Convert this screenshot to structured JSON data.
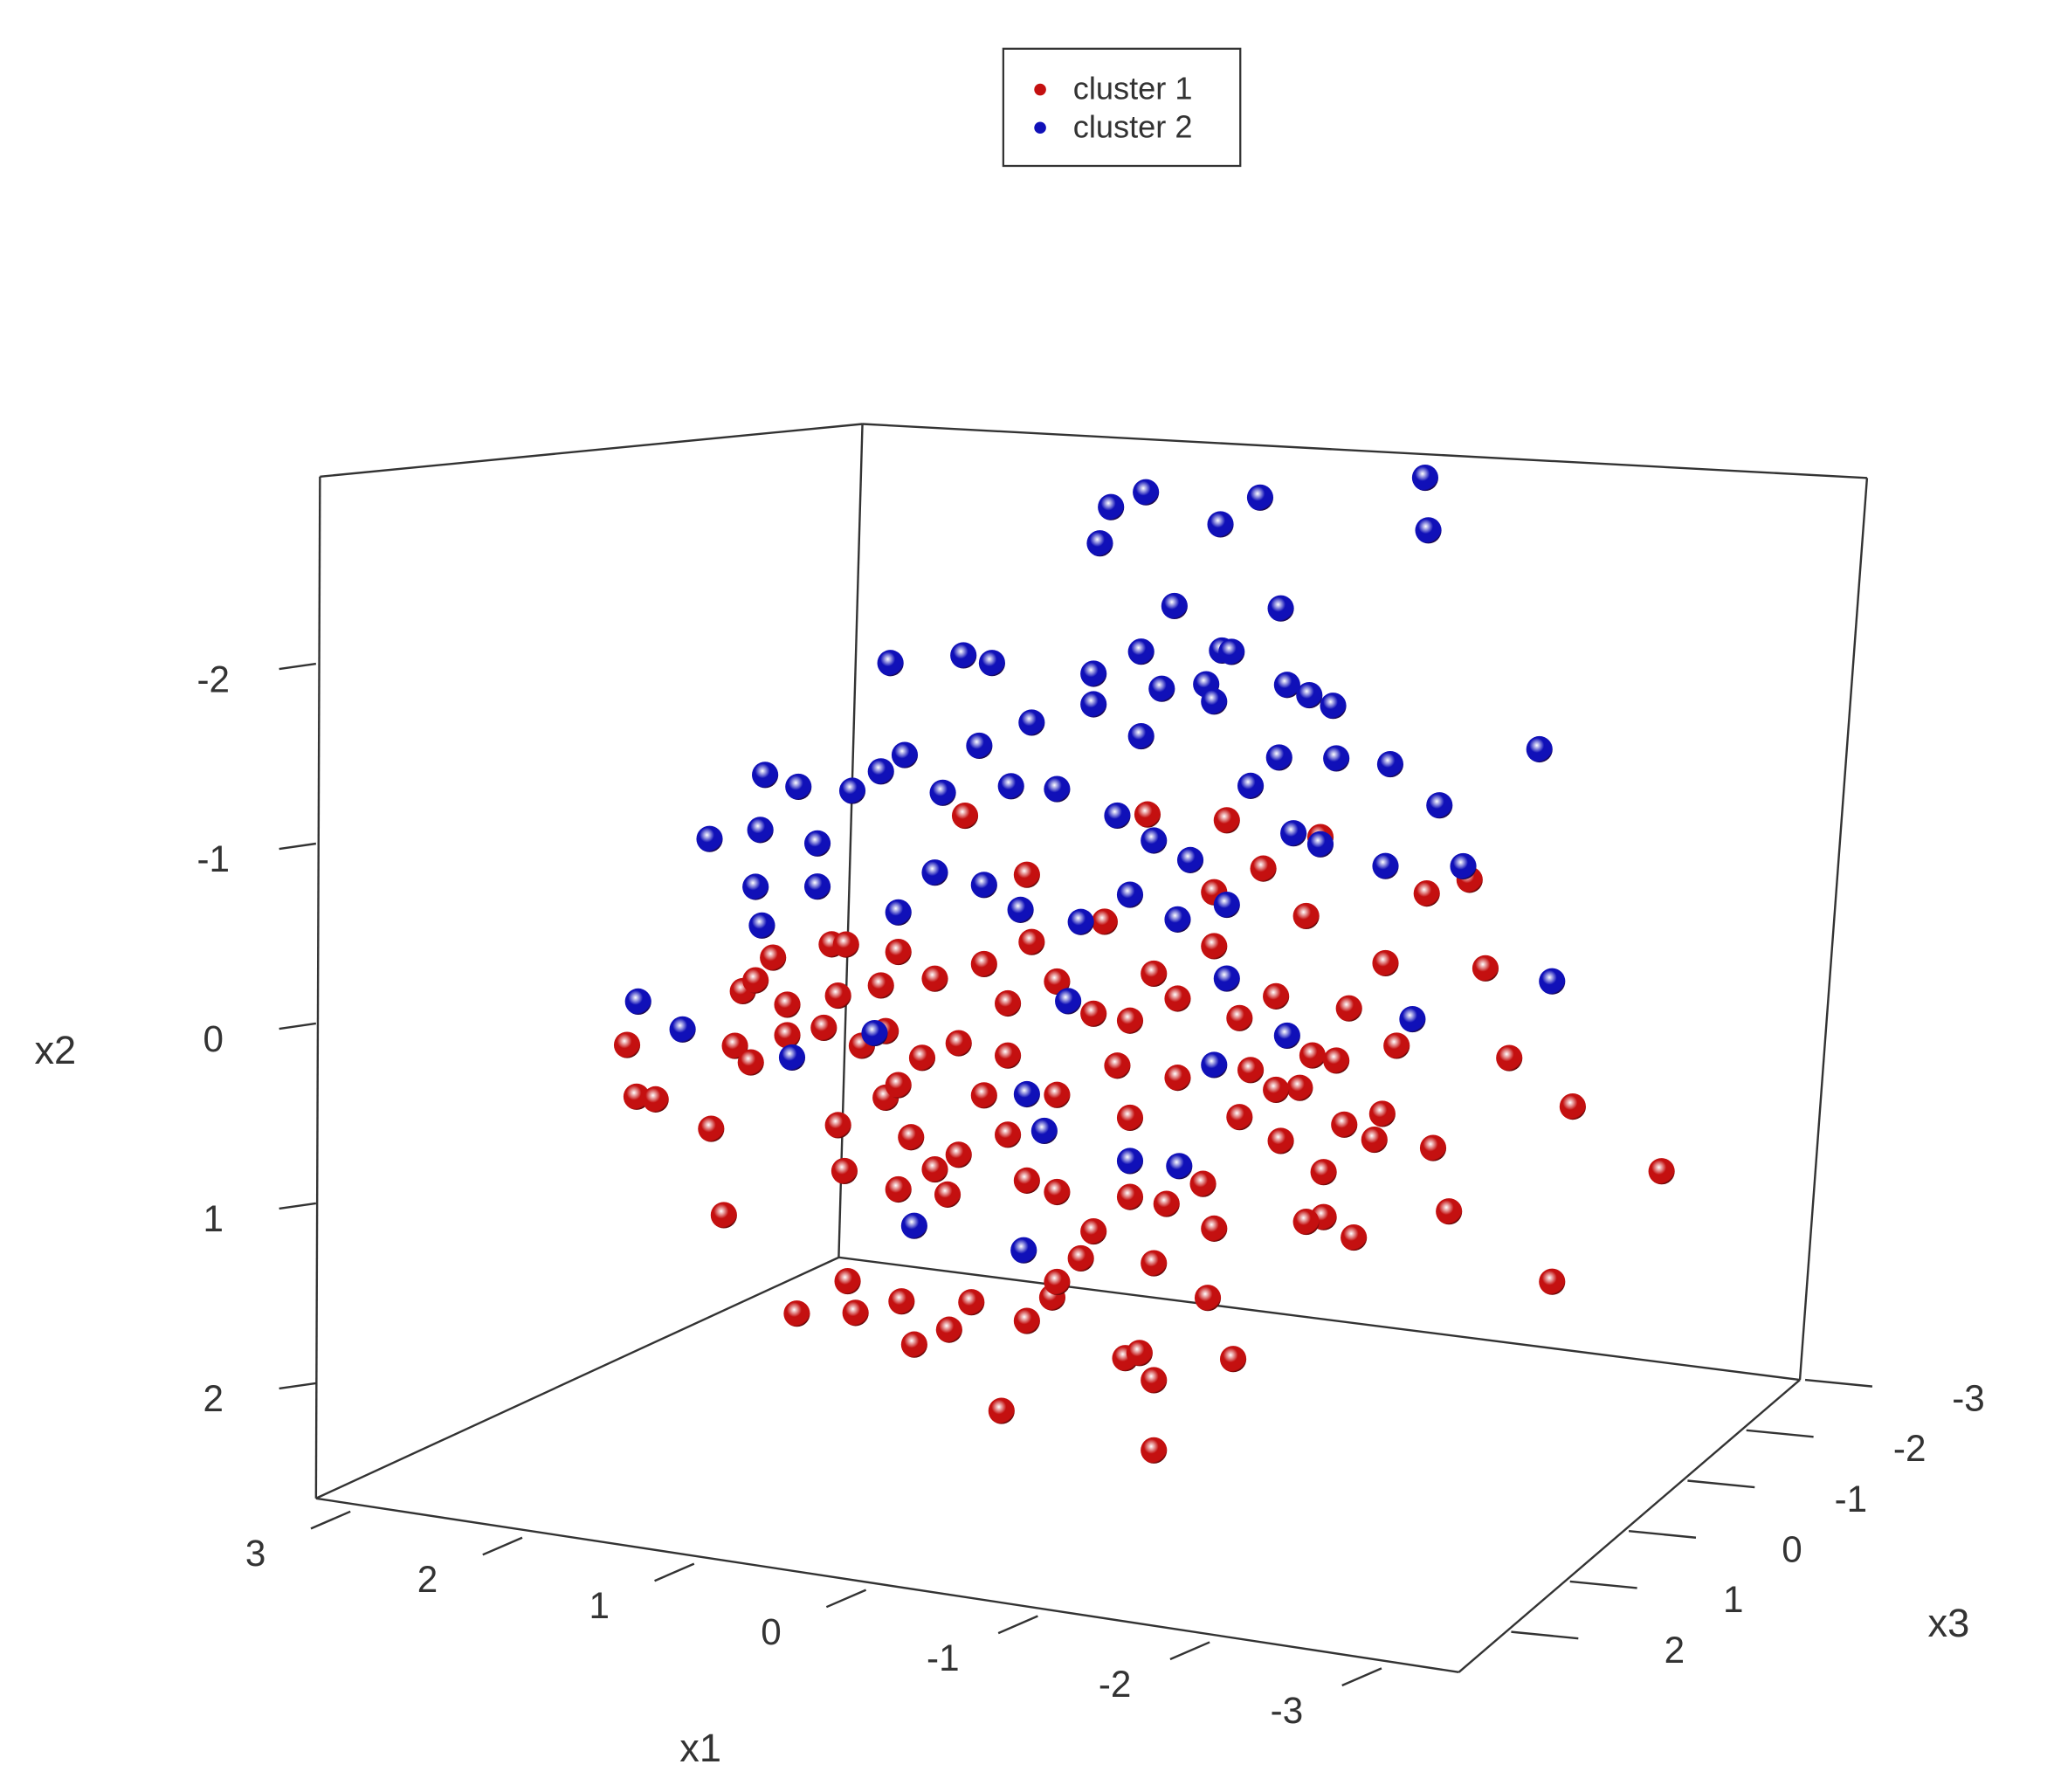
{
  "chart_data": {
    "type": "scatter3d",
    "xlabel": "x1",
    "ylabel": "x2",
    "zlabel": "x3",
    "xlim": [
      3.2,
      -3.45
    ],
    "xticks": [
      3,
      2,
      1,
      0,
      -1,
      -2,
      -3
    ],
    "ylim": [
      -3.04,
      2.64
    ],
    "yticks": [
      -2,
      -1,
      0,
      1,
      2
    ],
    "zlim": [
      -3,
      2.8
    ],
    "zticks": [
      -3,
      -2,
      -1,
      0,
      1,
      2
    ],
    "legend": "top",
    "series": [
      {
        "name": "cluster 1",
        "color": "#c41010",
        "x1": [
          2.83,
          2.77,
          2.65,
          2.3,
          2.22,
          2.15,
          2.05,
          2.1,
          2.02,
          1.82,
          1.82,
          1.59,
          1.91,
          1.54,
          1.45,
          1.46,
          1.44,
          1.76,
          1.39,
          1.1,
          1.02,
          0.8,
          0.66,
          0.31,
          0.15,
          0.47,
          -0.31,
          -0.4,
          -0.49,
          -0.99,
          -0.49,
          -0.83,
          -3.0,
          -3.69,
          -3.13,
          -2.73,
          -2.58,
          -2.35,
          -2.25,
          -1.95,
          -2.02,
          -1.75,
          -1.56,
          -1.45,
          -1.56,
          -1.88,
          -1.93,
          -1.69,
          -1.72,
          -2.21,
          -2.48,
          -1.54,
          -0.45,
          -0.95,
          0.7,
          0.31,
          -1.18,
          -0.87,
          -1.45,
          1.5,
          1.23,
          1.12,
          0.89,
          0.58,
          0.43,
          0.12,
          -0.11,
          -0.34,
          -0.64,
          -1.03,
          -1.26,
          -1.49,
          -1.1,
          -0.64,
          -0.26,
          0.12,
          0.43,
          0.74,
          0.97,
          1.2,
          1.04,
          0.74,
          0.43,
          0.89,
          1.12,
          0.81,
          0.12,
          -0.11,
          -0.34,
          -0.57,
          -0.8,
          -1.03,
          -1.29,
          -0.49,
          -0.87,
          -0.03,
          0.12,
          1.12,
          1.35,
          -1.64,
          1.5,
          1.2,
          -0.18,
          -0.49,
          0.28,
          -0.87,
          -1.41,
          0.58,
          -0.34,
          -1.26,
          0.31
        ],
        "x2": [
          0.72,
          1.0,
          1.0,
          1.12,
          1.59,
          0.64,
          0.72,
          0.33,
          0.26,
          0.37,
          0.54,
          0.47,
          0.12,
          0.0,
          -0.01,
          1.25,
          1.86,
          2.08,
          2.03,
          1.93,
          2.16,
          2.05,
          1.88,
          1.94,
          1.79,
          2.46,
          2.07,
          2.03,
          2.17,
          1.99,
          2.56,
          1.67,
          1.31,
          0.61,
          0.32,
          0.1,
          -0.38,
          1.0,
          0.66,
          -0.33,
          0.12,
          1.22,
          1.13,
          1.17,
          0.88,
          0.66,
          0.51,
          0.6,
          -0.05,
          -0.75,
          -0.86,
          -0.98,
          -0.97,
          -1.0,
          -0.82,
          -0.54,
          -0.76,
          -0.59,
          -0.53,
          0.28,
          0.19,
          -0.01,
          0.11,
          -0.01,
          0.19,
          0.03,
          0.18,
          0.19,
          0.03,
          0.09,
          -0.06,
          0.24,
          0.37,
          0.47,
          0.45,
          0.66,
          0.48,
          0.45,
          0.56,
          0.81,
          1.01,
          1.07,
          0.92,
          1.17,
          1.31,
          1.3,
          1.2,
          1.39,
          1.17,
          1.18,
          1.04,
          0.64,
          0.74,
          1.52,
          1.28,
          1.55,
          1.7,
          0.73,
          0.54,
          0.25,
          1.0,
          0.44,
          -0.34,
          -0.09,
          -0.17,
          -0.29,
          0.43,
          0.72,
          0.73,
          0.46,
          1.16
        ],
        "x3": [
          0,
          0,
          0,
          0,
          0,
          0,
          0,
          0,
          0,
          0,
          0,
          0,
          0,
          0,
          0,
          0,
          0,
          0,
          0,
          0,
          0,
          0,
          0,
          0,
          0,
          0,
          0,
          0,
          0,
          0,
          0,
          0,
          0,
          0,
          0,
          0,
          0,
          0,
          0,
          0,
          0,
          0,
          0,
          0,
          0,
          0,
          0,
          0,
          0,
          0,
          0,
          0,
          0,
          0,
          0,
          0,
          0,
          0,
          0,
          0,
          0,
          0,
          0,
          0,
          0,
          0,
          0,
          0,
          0,
          0,
          0,
          0,
          0,
          0,
          0,
          0,
          0,
          0,
          0,
          0,
          0,
          0,
          0,
          0,
          0,
          0,
          0,
          0,
          0,
          0,
          0,
          0,
          0,
          0,
          0,
          0,
          0,
          0,
          0,
          0,
          0,
          0,
          0,
          0,
          0,
          0,
          0,
          0,
          0,
          0,
          0
        ]
      },
      {
        "name": "cluster 2",
        "color": "#1010b8",
        "x1": [
          -0.44,
          -0.22,
          -1.16,
          -0.15,
          -0.91,
          -2.2,
          -2.22,
          -0.62,
          -1.29,
          1.17,
          0.71,
          0.53,
          -0.41,
          -0.92,
          -0.98,
          -0.11,
          -0.54,
          -0.82,
          -0.87,
          -1.33,
          -1.47,
          -1.62,
          0.28,
          -0.11,
          0.61,
          -0.41,
          1.96,
          1.75,
          1.23,
          1.08,
          -2.92,
          -1.98,
          -1.64,
          -1.28,
          2.31,
          1.99,
          1.63,
          1.41,
          0.84,
          0.41,
          0.12,
          -2.29,
          2.02,
          1.63,
          1.98,
          2.76,
          2.48,
          1.79,
          -3.0,
          -2.12,
          -2.44,
          -1.95,
          -1.37,
          -1.54,
          -0.95,
          -0.64,
          -0.34,
          -0.03,
          0.35,
          0.58,
          0.89,
          1.12,
          0.31,
          0.2,
          -0.34,
          -0.65,
          1.02,
          0.33,
          1.27,
          -0.95,
          -1.33,
          -0.87,
          0.05,
          -0.49,
          -1.1,
          -0.26,
          -0.72
        ],
        "x2": [
          -2.76,
          -2.65,
          -2.82,
          -2.44,
          -2.64,
          -3.06,
          -2.77,
          -2.15,
          -2.22,
          -1.61,
          -1.71,
          -1.69,
          -1.87,
          -1.94,
          -1.94,
          -1.71,
          -1.68,
          -1.74,
          -1.65,
          -1.8,
          -1.76,
          -1.72,
          -1.39,
          -1.54,
          -1.22,
          -1.4,
          -0.89,
          -0.85,
          -1.0,
          -1.11,
          -1.64,
          -1.44,
          -1.43,
          -1.39,
          -0.49,
          -0.58,
          -0.55,
          -0.87,
          -0.93,
          -1.02,
          -1.04,
          -1.25,
          -0.26,
          -0.31,
          -0.05,
          0.47,
          0.59,
          0.66,
          -0.36,
          -0.04,
          -0.93,
          -0.87,
          -0.98,
          -0.94,
          -0.53,
          -0.41,
          -0.51,
          -0.32,
          -0.34,
          -0.45,
          -0.48,
          -0.23,
          0.68,
          0.87,
          0.97,
          0.96,
          1.5,
          1.55,
          0.46,
          -0.12,
          0.15,
          0.37,
          0.13,
          -0.83,
          -1.21,
          -0.94,
          -0.75
        ],
        "x3": [
          0,
          0,
          0,
          0,
          0,
          0,
          0,
          0,
          0,
          0,
          0,
          0,
          0,
          0,
          0,
          0,
          0,
          0,
          0,
          0,
          0,
          0,
          0,
          0,
          0,
          0,
          0,
          0,
          0,
          0,
          0,
          0,
          0,
          0,
          0,
          0,
          0,
          0,
          0,
          0,
          0,
          0,
          0,
          0,
          0,
          0,
          0,
          0,
          0,
          0,
          0,
          0,
          0,
          0,
          0,
          0,
          0,
          0,
          0,
          0,
          0,
          0,
          0,
          0,
          0,
          0,
          0,
          0,
          0,
          0,
          0,
          0,
          0,
          0,
          0,
          0,
          0
        ]
      }
    ]
  }
}
